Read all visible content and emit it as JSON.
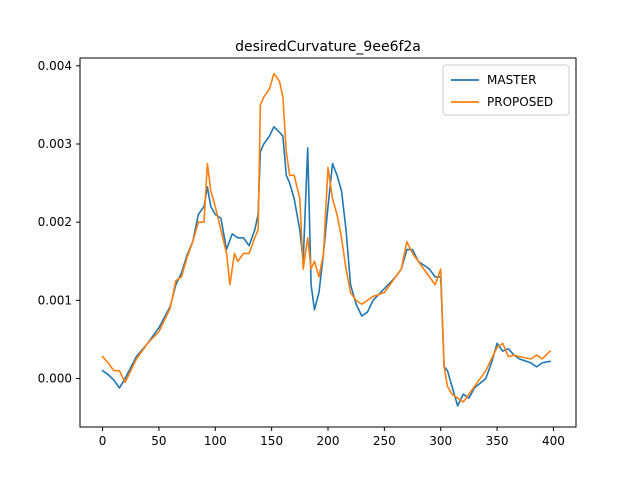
{
  "chart_data": {
    "type": "line",
    "title": "desiredCurvature_9ee6f2a",
    "xlabel": "",
    "ylabel": "",
    "xlim": [
      -20,
      420
    ],
    "ylim": [
      -0.00062,
      0.0041
    ],
    "xticks": [
      0,
      50,
      100,
      150,
      200,
      250,
      300,
      350,
      400
    ],
    "xtick_labels": [
      "0",
      "50",
      "100",
      "150",
      "200",
      "250",
      "300",
      "350",
      "400"
    ],
    "yticks": [
      0.0,
      0.001,
      0.002,
      0.003,
      0.004
    ],
    "ytick_labels": [
      "0.000",
      "0.001",
      "0.002",
      "0.003",
      "0.004"
    ],
    "grid": false,
    "legend_position": "upper right",
    "series": [
      {
        "name": "MASTER",
        "color": "#1f77b4",
        "points": [
          [
            0,
            0.0001
          ],
          [
            5,
            5e-05
          ],
          [
            10,
            -2e-05
          ],
          [
            15,
            -0.00012
          ],
          [
            20,
            0.0
          ],
          [
            30,
            0.00028
          ],
          [
            40,
            0.00045
          ],
          [
            50,
            0.00065
          ],
          [
            60,
            0.00092
          ],
          [
            65,
            0.0012
          ],
          [
            70,
            0.00135
          ],
          [
            75,
            0.00158
          ],
          [
            80,
            0.00175
          ],
          [
            85,
            0.0021
          ],
          [
            90,
            0.0022
          ],
          [
            93,
            0.00245
          ],
          [
            96,
            0.0022
          ],
          [
            100,
            0.0021
          ],
          [
            105,
            0.00205
          ],
          [
            110,
            0.00165
          ],
          [
            115,
            0.00185
          ],
          [
            120,
            0.0018
          ],
          [
            125,
            0.0018
          ],
          [
            130,
            0.0017
          ],
          [
            135,
            0.0019
          ],
          [
            138,
            0.0021
          ],
          [
            140,
            0.0029
          ],
          [
            143,
            0.003
          ],
          [
            148,
            0.0031
          ],
          [
            152,
            0.00322
          ],
          [
            157,
            0.00315
          ],
          [
            160,
            0.0031
          ],
          [
            163,
            0.0026
          ],
          [
            166,
            0.0025
          ],
          [
            170,
            0.0023
          ],
          [
            175,
            0.0019
          ],
          [
            178,
            0.0015
          ],
          [
            182,
            0.00295
          ],
          [
            185,
            0.0012
          ],
          [
            188,
            0.00088
          ],
          [
            192,
            0.0011
          ],
          [
            196,
            0.0016
          ],
          [
            200,
            0.0022
          ],
          [
            204,
            0.00275
          ],
          [
            208,
            0.0026
          ],
          [
            212,
            0.0024
          ],
          [
            216,
            0.0019
          ],
          [
            220,
            0.0012
          ],
          [
            225,
            0.00095
          ],
          [
            230,
            0.0008
          ],
          [
            235,
            0.00085
          ],
          [
            240,
            0.001
          ],
          [
            250,
            0.00115
          ],
          [
            260,
            0.0013
          ],
          [
            265,
            0.0014
          ],
          [
            270,
            0.00165
          ],
          [
            275,
            0.00165
          ],
          [
            280,
            0.0015
          ],
          [
            290,
            0.0014
          ],
          [
            295,
            0.0013
          ],
          [
            300,
            0.0013
          ],
          [
            303,
            0.00015
          ],
          [
            306,
            0.0001
          ],
          [
            310,
            -0.0001
          ],
          [
            315,
            -0.00035
          ],
          [
            320,
            -0.0002
          ],
          [
            325,
            -0.00025
          ],
          [
            330,
            -0.00012
          ],
          [
            340,
            0.0
          ],
          [
            345,
            0.0002
          ],
          [
            350,
            0.00045
          ],
          [
            355,
            0.00035
          ],
          [
            360,
            0.00038
          ],
          [
            365,
            0.0003
          ],
          [
            370,
            0.00025
          ],
          [
            380,
            0.0002
          ],
          [
            385,
            0.00015
          ],
          [
            390,
            0.0002
          ],
          [
            397,
            0.00022
          ]
        ]
      },
      {
        "name": "PROPOSED",
        "color": "#ff7f0e",
        "points": [
          [
            0,
            0.00028
          ],
          [
            5,
            0.0002
          ],
          [
            10,
            0.0001
          ],
          [
            15,
            0.0001
          ],
          [
            20,
            -5e-05
          ],
          [
            30,
            0.00025
          ],
          [
            40,
            0.00045
          ],
          [
            50,
            0.0006
          ],
          [
            60,
            0.0009
          ],
          [
            65,
            0.00125
          ],
          [
            70,
            0.0013
          ],
          [
            75,
            0.00155
          ],
          [
            80,
            0.00175
          ],
          [
            85,
            0.002
          ],
          [
            90,
            0.002
          ],
          [
            93,
            0.00275
          ],
          [
            96,
            0.0024
          ],
          [
            100,
            0.0022
          ],
          [
            105,
            0.0019
          ],
          [
            110,
            0.0016
          ],
          [
            113,
            0.0012
          ],
          [
            117,
            0.0016
          ],
          [
            120,
            0.0015
          ],
          [
            125,
            0.0016
          ],
          [
            130,
            0.0016
          ],
          [
            135,
            0.0018
          ],
          [
            138,
            0.0019
          ],
          [
            140,
            0.0035
          ],
          [
            143,
            0.0036
          ],
          [
            148,
            0.0037
          ],
          [
            152,
            0.0039
          ],
          [
            157,
            0.0038
          ],
          [
            160,
            0.0036
          ],
          [
            163,
            0.0029
          ],
          [
            166,
            0.0026
          ],
          [
            170,
            0.0026
          ],
          [
            175,
            0.0023
          ],
          [
            178,
            0.0014
          ],
          [
            182,
            0.0018
          ],
          [
            185,
            0.0014
          ],
          [
            188,
            0.0015
          ],
          [
            192,
            0.0013
          ],
          [
            196,
            0.0016
          ],
          [
            200,
            0.0027
          ],
          [
            204,
            0.0023
          ],
          [
            208,
            0.0021
          ],
          [
            212,
            0.0018
          ],
          [
            216,
            0.0014
          ],
          [
            220,
            0.0011
          ],
          [
            225,
            0.001
          ],
          [
            230,
            0.00095
          ],
          [
            240,
            0.00105
          ],
          [
            250,
            0.0011
          ],
          [
            260,
            0.0013
          ],
          [
            265,
            0.0014
          ],
          [
            270,
            0.00175
          ],
          [
            275,
            0.0016
          ],
          [
            280,
            0.0015
          ],
          [
            290,
            0.0013
          ],
          [
            295,
            0.0012
          ],
          [
            300,
            0.0014
          ],
          [
            303,
            0.00015
          ],
          [
            306,
            -0.0001
          ],
          [
            310,
            -0.0002
          ],
          [
            315,
            -0.00025
          ],
          [
            320,
            -0.0003
          ],
          [
            325,
            -0.0002
          ],
          [
            330,
            -0.0001
          ],
          [
            340,
            0.0001
          ],
          [
            345,
            0.00025
          ],
          [
            350,
            0.0004
          ],
          [
            355,
            0.00045
          ],
          [
            360,
            0.00028
          ],
          [
            365,
            0.0003
          ],
          [
            370,
            0.00028
          ],
          [
            380,
            0.00025
          ],
          [
            385,
            0.0003
          ],
          [
            390,
            0.00025
          ],
          [
            397,
            0.00035
          ]
        ]
      }
    ]
  }
}
